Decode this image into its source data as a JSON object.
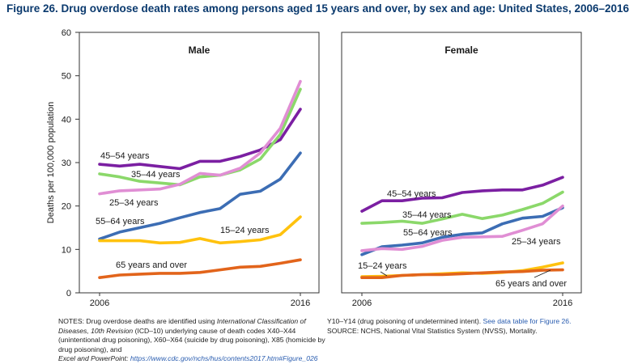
{
  "title": "Figure 26. Drug overdose death rates among persons aged 15 years and over, by sex and age: United States, 2006–2016",
  "colors": {
    "45-54": "#7b1fa2",
    "35-44": "#8bd86a",
    "25-34": "#e08ed4",
    "55-64": "#3c6db4",
    "15-24": "#ffc20e",
    "65plus": "#e2641b",
    "title": "#0b3a6e",
    "link": "#2a5db0"
  },
  "chart_data": [
    {
      "type": "line",
      "panel_title": "Male",
      "x": [
        2006,
        2007,
        2008,
        2009,
        2010,
        2011,
        2012,
        2013,
        2014,
        2015,
        2016
      ],
      "x_tick_labels": [
        "2006",
        "2016"
      ],
      "ylabel": "Deaths per 100,000 population",
      "ylim": [
        0,
        60
      ],
      "y_ticks": [
        0,
        10,
        20,
        30,
        40,
        50,
        60
      ],
      "grid": false,
      "series": [
        {
          "name": "45–54 years",
          "key": "45-54",
          "values": [
            29.6,
            29.2,
            29.6,
            29.1,
            28.6,
            30.3,
            30.3,
            31.4,
            32.9,
            35.3,
            42.3
          ]
        },
        {
          "name": "35–44 years",
          "key": "35-44",
          "values": [
            27.4,
            26.7,
            25.7,
            25.3,
            24.9,
            26.7,
            27.1,
            28.3,
            30.8,
            36.5,
            46.9
          ]
        },
        {
          "name": "25–34 years",
          "key": "25-34",
          "values": [
            22.8,
            23.5,
            23.7,
            23.9,
            25.0,
            27.5,
            27.1,
            28.7,
            32.2,
            37.9,
            48.7
          ]
        },
        {
          "name": "55–64 years",
          "key": "55-64",
          "values": [
            12.4,
            14.0,
            15.0,
            16.0,
            17.3,
            18.5,
            19.4,
            22.7,
            23.4,
            26.2,
            32.2
          ]
        },
        {
          "name": "15–24 years",
          "key": "15-24",
          "values": [
            12.0,
            12.0,
            12.0,
            11.5,
            11.6,
            12.5,
            11.5,
            11.8,
            12.2,
            13.4,
            17.5
          ]
        },
        {
          "name": "65 years and over",
          "key": "65plus",
          "values": [
            3.5,
            4.1,
            4.3,
            4.5,
            4.5,
            4.7,
            5.3,
            5.9,
            6.1,
            6.8,
            7.6
          ]
        }
      ]
    },
    {
      "type": "line",
      "panel_title": "Female",
      "x": [
        2006,
        2007,
        2008,
        2009,
        2010,
        2011,
        2012,
        2013,
        2014,
        2015,
        2016
      ],
      "x_tick_labels": [
        "2006",
        "2016"
      ],
      "ylim": [
        0,
        60
      ],
      "grid": false,
      "series": [
        {
          "name": "45–54 years",
          "key": "45-54",
          "values": [
            18.8,
            21.2,
            21.2,
            21.8,
            21.9,
            23.1,
            23.5,
            23.7,
            23.7,
            24.8,
            26.6
          ]
        },
        {
          "name": "35–44 years",
          "key": "35-44",
          "values": [
            16.0,
            16.2,
            16.5,
            16.0,
            17.0,
            18.1,
            17.1,
            17.9,
            19.2,
            20.6,
            23.2
          ]
        },
        {
          "name": "55–64 years",
          "key": "55-64",
          "values": [
            8.8,
            10.6,
            11.0,
            11.5,
            12.8,
            13.5,
            13.8,
            15.9,
            17.2,
            17.6,
            19.6
          ]
        },
        {
          "name": "25–34 years",
          "key": "25-34",
          "values": [
            9.7,
            10.2,
            10.0,
            10.7,
            12.1,
            12.8,
            12.9,
            13.0,
            14.4,
            15.9,
            20.0
          ]
        },
        {
          "name": "15–24 years",
          "key": "15-24",
          "values": [
            3.7,
            3.8,
            4.0,
            4.2,
            4.4,
            4.6,
            4.5,
            4.7,
            5.1,
            5.9,
            6.9
          ]
        },
        {
          "name": "65 years and over",
          "key": "65plus",
          "values": [
            3.5,
            3.5,
            4.0,
            4.2,
            4.2,
            4.4,
            4.6,
            4.8,
            4.9,
            5.2,
            5.3
          ]
        }
      ]
    }
  ],
  "notes": {
    "left_1": "NOTES: Drug overdose deaths are identified using ",
    "left_2_italic": "International Classification of Diseases, 10th Revision",
    "left_3": " (ICD–10) underlying cause of death codes X40–X44 (unintentional drug poisoning), X60–X64 (suicide by drug poisoning), X85 (homicide by drug poisoning), and",
    "excel_label": "Excel and PowerPoint: ",
    "excel_url": "https://www.cdc.gov/nchs/hus/contents2017.htm#Figure_026",
    "right_1": "Y10–Y14 (drug poisoning of undetermined intent). ",
    "right_link": "See data table for Figure 26.",
    "right_2": "SOURCE: NCHS, National Vital Statistics System (NVSS), Mortality."
  }
}
